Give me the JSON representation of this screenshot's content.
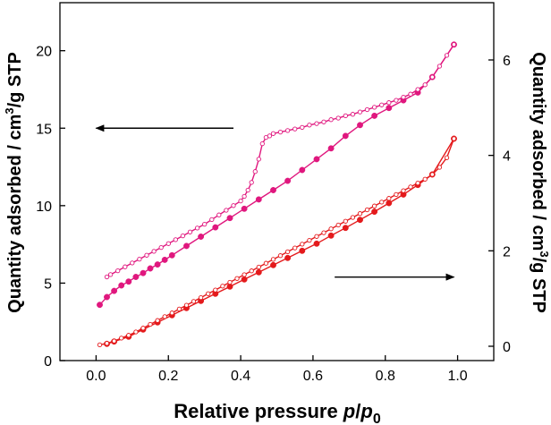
{
  "chart_data": {
    "type": "line",
    "xlabel_prefix": "Relative pressure ",
    "xlabel_italic": "p",
    "xlabel_sep": "/",
    "xlabel_p0": "p",
    "xlabel_sub": "0",
    "ylabel_left_pre": "Quantity  adsorbed / cm",
    "ylabel_left_sup": "3",
    "ylabel_left_post": "/g STP",
    "ylabel_right_pre": "Quantity  adsorbed / cm",
    "ylabel_right_sup": "3",
    "ylabel_right_post": "/g STP",
    "xlim": [
      -0.1,
      1.1
    ],
    "ylim_left": [
      0,
      23.1
    ],
    "ylim_right": [
      -0.3,
      7.2
    ],
    "x_ticks": [
      "0.0",
      "0.2",
      "0.4",
      "0.6",
      "0.8",
      "1.0"
    ],
    "x_tick_values": [
      0,
      0.2,
      0.4,
      0.6,
      0.8,
      1.0
    ],
    "y_left_ticks": [
      "0",
      "5",
      "10",
      "15",
      "20"
    ],
    "y_left_tick_values": [
      0,
      5,
      10,
      15,
      20
    ],
    "y_right_ticks": [
      "0",
      "2",
      "4",
      "6"
    ],
    "y_right_tick_values": [
      0,
      2,
      4,
      6
    ],
    "arrows": [
      {
        "name": "arrow-left-axis",
        "from": [
          0.38,
          15.0
        ],
        "to": [
          0.0,
          15.0
        ],
        "axis": "left"
      },
      {
        "name": "arrow-right-axis",
        "from": [
          0.66,
          1.45
        ],
        "to": [
          0.99,
          1.45
        ],
        "axis": "right"
      }
    ],
    "series": [
      {
        "name": "pink-adsorption",
        "axis": "left",
        "color": "#e0177e",
        "marker": "filled",
        "x": [
          0.01,
          0.03,
          0.05,
          0.07,
          0.09,
          0.11,
          0.13,
          0.15,
          0.17,
          0.19,
          0.21,
          0.25,
          0.29,
          0.33,
          0.37,
          0.41,
          0.45,
          0.49,
          0.53,
          0.57,
          0.61,
          0.65,
          0.69,
          0.73,
          0.77,
          0.81,
          0.85,
          0.89,
          0.93,
          0.99
        ],
        "y": [
          3.6,
          4.1,
          4.5,
          4.85,
          5.1,
          5.4,
          5.65,
          5.95,
          6.2,
          6.5,
          6.8,
          7.4,
          8.0,
          8.6,
          9.2,
          9.8,
          10.4,
          11.0,
          11.6,
          12.3,
          13.0,
          13.7,
          14.5,
          15.2,
          15.8,
          16.3,
          16.8,
          17.3,
          18.3,
          20.4
        ]
      },
      {
        "name": "pink-desorption",
        "axis": "left",
        "color": "#e0177e",
        "marker": "open",
        "x": [
          0.99,
          0.97,
          0.95,
          0.93,
          0.91,
          0.89,
          0.87,
          0.85,
          0.83,
          0.81,
          0.79,
          0.77,
          0.75,
          0.73,
          0.71,
          0.69,
          0.67,
          0.65,
          0.63,
          0.61,
          0.59,
          0.57,
          0.55,
          0.53,
          0.51,
          0.49,
          0.48,
          0.47,
          0.46,
          0.45,
          0.44,
          0.43,
          0.42,
          0.41,
          0.4,
          0.38,
          0.36,
          0.34,
          0.32,
          0.3,
          0.28,
          0.26,
          0.24,
          0.22,
          0.2,
          0.18,
          0.16,
          0.14,
          0.12,
          0.1,
          0.08,
          0.06,
          0.04,
          0.03
        ],
        "y": [
          20.4,
          19.7,
          19.0,
          18.3,
          17.8,
          17.5,
          17.2,
          17.0,
          16.8,
          16.65,
          16.5,
          16.35,
          16.2,
          16.05,
          15.9,
          15.8,
          15.65,
          15.55,
          15.4,
          15.3,
          15.2,
          15.05,
          14.95,
          14.85,
          14.75,
          14.65,
          14.5,
          14.4,
          14.0,
          13.0,
          12.2,
          11.5,
          11.0,
          10.6,
          10.3,
          10.0,
          9.7,
          9.4,
          9.1,
          8.8,
          8.55,
          8.3,
          8.05,
          7.8,
          7.55,
          7.3,
          7.05,
          6.8,
          6.55,
          6.3,
          6.05,
          5.8,
          5.55,
          5.4
        ]
      },
      {
        "name": "red-adsorption",
        "axis": "right",
        "color": "#e41a1c",
        "marker": "filled",
        "x": [
          0.03,
          0.05,
          0.09,
          0.13,
          0.17,
          0.21,
          0.25,
          0.29,
          0.33,
          0.37,
          0.41,
          0.45,
          0.49,
          0.53,
          0.57,
          0.61,
          0.65,
          0.69,
          0.73,
          0.77,
          0.81,
          0.85,
          0.89,
          0.93,
          0.99
        ],
        "y": [
          0.05,
          0.1,
          0.2,
          0.35,
          0.5,
          0.65,
          0.8,
          0.95,
          1.1,
          1.25,
          1.4,
          1.55,
          1.7,
          1.85,
          2.0,
          2.15,
          2.32,
          2.48,
          2.65,
          2.82,
          3.0,
          3.18,
          3.38,
          3.6,
          4.35
        ]
      },
      {
        "name": "red-desorption",
        "axis": "right",
        "color": "#e41a1c",
        "marker": "open",
        "x": [
          0.99,
          0.97,
          0.95,
          0.93,
          0.91,
          0.89,
          0.87,
          0.85,
          0.83,
          0.81,
          0.79,
          0.77,
          0.75,
          0.73,
          0.71,
          0.69,
          0.67,
          0.65,
          0.63,
          0.61,
          0.59,
          0.57,
          0.55,
          0.53,
          0.51,
          0.49,
          0.47,
          0.45,
          0.43,
          0.41,
          0.39,
          0.37,
          0.35,
          0.33,
          0.31,
          0.29,
          0.27,
          0.25,
          0.23,
          0.21,
          0.19,
          0.17,
          0.15,
          0.13,
          0.11,
          0.09,
          0.07,
          0.05,
          0.03,
          0.01
        ],
        "y": [
          4.35,
          3.95,
          3.75,
          3.6,
          3.5,
          3.42,
          3.34,
          3.26,
          3.18,
          3.1,
          3.02,
          2.94,
          2.86,
          2.78,
          2.7,
          2.62,
          2.54,
          2.46,
          2.38,
          2.3,
          2.22,
          2.14,
          2.06,
          1.98,
          1.9,
          1.82,
          1.74,
          1.66,
          1.58,
          1.5,
          1.42,
          1.34,
          1.26,
          1.18,
          1.1,
          1.02,
          0.94,
          0.86,
          0.78,
          0.7,
          0.62,
          0.54,
          0.46,
          0.38,
          0.3,
          0.23,
          0.17,
          0.11,
          0.06,
          0.03
        ]
      }
    ]
  }
}
